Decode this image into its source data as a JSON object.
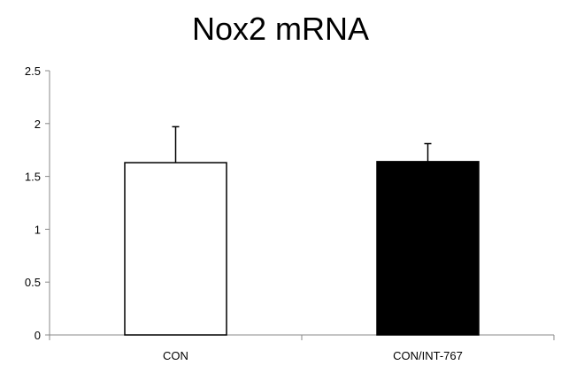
{
  "chart_data": {
    "type": "bar",
    "title": "Nox2 mRNA",
    "xlabel": "",
    "ylabel": "",
    "categories": [
      "CON",
      "CON/INT-767"
    ],
    "values": [
      1.63,
      1.64
    ],
    "errors": [
      0.34,
      0.17
    ],
    "bar_colors": [
      "#ffffff",
      "#000000"
    ],
    "bar_edge_color": "#000000",
    "ylim": [
      0,
      2.5
    ],
    "yticks": [
      0,
      0.5,
      1,
      1.5,
      2,
      2.5
    ],
    "ytick_labels": [
      "0",
      "0.5",
      "1",
      "1.5",
      "2",
      "2.5"
    ],
    "grid": false,
    "legend": "none"
  }
}
